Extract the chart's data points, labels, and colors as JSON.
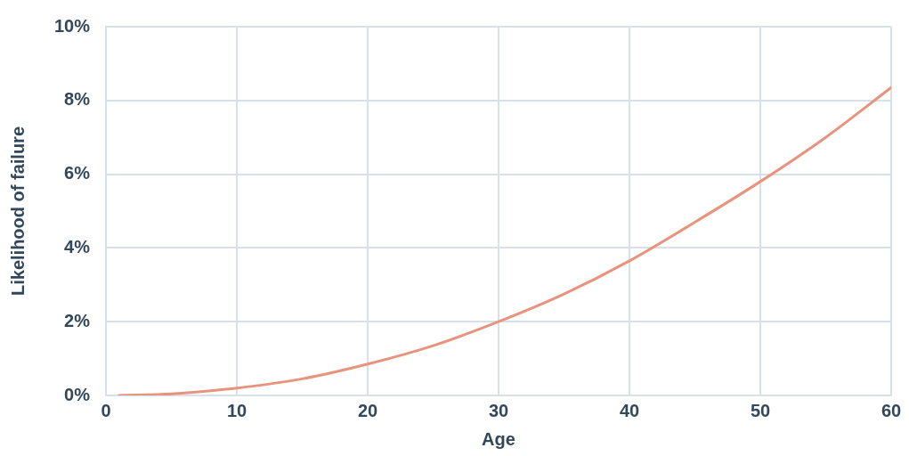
{
  "chart_data": {
    "type": "line",
    "xlabel": "Age",
    "ylabel": "Likelihood of failure",
    "x": [
      1,
      5,
      10,
      15,
      20,
      25,
      30,
      35,
      40,
      45,
      50,
      55,
      60
    ],
    "series": [
      {
        "color": "#e8937e",
        "values": [
          0,
          0.04,
          0.2,
          0.45,
          0.85,
          1.35,
          2.0,
          2.75,
          3.65,
          4.7,
          5.8,
          7.0,
          8.35
        ]
      }
    ],
    "xlim": [
      0,
      60
    ],
    "xticks": [
      0,
      10,
      20,
      30,
      40,
      50,
      60
    ],
    "ylim": [
      0,
      10
    ],
    "yticks": [
      {
        "value": 0,
        "label": "0%"
      },
      {
        "value": 2,
        "label": "2%"
      },
      {
        "value": 4,
        "label": "4%"
      },
      {
        "value": 6,
        "label": "6%"
      },
      {
        "value": 8,
        "label": "8%"
      },
      {
        "value": 10,
        "label": "10%"
      }
    ],
    "grid": true,
    "legend": false,
    "marker": "none",
    "line_style": "solid"
  }
}
